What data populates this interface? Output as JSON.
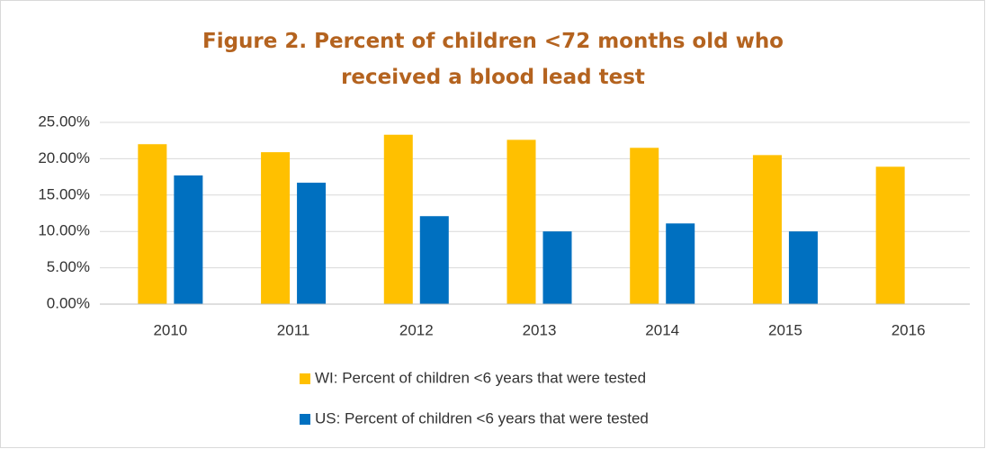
{
  "chart_data": {
    "type": "bar",
    "title": "Figure 2. Percent of children <72 months old who received a blood lead test",
    "categories": [
      "2010",
      "2011",
      "2012",
      "2013",
      "2014",
      "2015",
      "2016"
    ],
    "series": [
      {
        "name": "WI: Percent of children <6 years that were tested",
        "color": "#ffc000",
        "values": [
          22.0,
          20.9,
          23.3,
          22.6,
          21.5,
          20.5,
          18.9
        ]
      },
      {
        "name": "US: Percent of children <6 years that were tested",
        "color": "#0070c0",
        "values": [
          17.7,
          16.7,
          12.1,
          10.0,
          11.1,
          10.0,
          null
        ]
      }
    ],
    "ylim": [
      0,
      25
    ],
    "yticks": [
      {
        "value": 0,
        "label": "0.00%"
      },
      {
        "value": 5,
        "label": "5.00%"
      },
      {
        "value": 10,
        "label": "10.00%"
      },
      {
        "value": 15,
        "label": "15.00%"
      },
      {
        "value": 20,
        "label": "20.00%"
      },
      {
        "value": 25,
        "label": "25.00%"
      }
    ],
    "grid": true,
    "legend": "bottom"
  }
}
